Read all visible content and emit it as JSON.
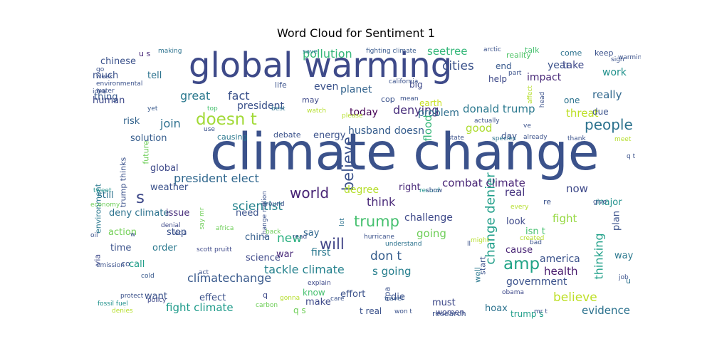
{
  "chart_data": {
    "type": "wordcloud",
    "title": "Word Cloud for Sentiment 1",
    "colormap": "viridis",
    "background": "#ffffff",
    "words": [
      {
        "text": "climate change",
        "weight": 1.0,
        "color": "#3b528b"
      },
      {
        "text": "global warming",
        "weight": 0.68,
        "color": "#3e4a89"
      },
      {
        "text": "doesn t",
        "weight": 0.33,
        "color": "#a2da37"
      },
      {
        "text": "amp",
        "weight": 0.33,
        "color": "#20a386"
      },
      {
        "text": "s",
        "weight": 0.33,
        "color": "#3e4989"
      },
      {
        "text": "believe",
        "weight": 0.3,
        "color": "#3b528b",
        "vertical": true
      },
      {
        "text": "trump",
        "weight": 0.3,
        "color": "#46c06f"
      },
      {
        "text": "will",
        "weight": 0.3,
        "color": "#414487"
      },
      {
        "text": "world",
        "weight": 0.28,
        "color": "#482475"
      },
      {
        "text": "people",
        "weight": 0.28,
        "color": "#2c728e"
      },
      {
        "text": "change denier",
        "weight": 0.26,
        "color": "#1f9e89",
        "vertical": true
      },
      {
        "text": "believe",
        "weight": 0.24,
        "color": "#bddf26"
      },
      {
        "text": "scientist",
        "weight": 0.24,
        "color": "#25838e"
      },
      {
        "text": "new",
        "weight": 0.24,
        "color": "#29af7f"
      },
      {
        "text": "don t",
        "weight": 0.24,
        "color": "#365d8d"
      },
      {
        "text": "cities",
        "weight": 0.24,
        "color": "#3b528b"
      },
      {
        "text": "president elect",
        "weight": 0.23,
        "color": "#31688e"
      },
      {
        "text": "think",
        "weight": 0.23,
        "color": "#482878"
      },
      {
        "text": "denying",
        "weight": 0.23,
        "color": "#472d7b"
      },
      {
        "text": "climatechange",
        "weight": 0.23,
        "color": "#38598c"
      },
      {
        "text": "thinking",
        "weight": 0.22,
        "color": "#1fa088",
        "vertical": true
      },
      {
        "text": "pollution",
        "weight": 0.22,
        "color": "#35b779"
      },
      {
        "text": "great",
        "weight": 0.22,
        "color": "#2a788e"
      },
      {
        "text": "fact",
        "weight": 0.22,
        "color": "#3b528b"
      },
      {
        "text": "join",
        "weight": 0.22,
        "color": "#2d708e"
      },
      {
        "text": "tackle climate",
        "weight": 0.22,
        "color": "#26828e"
      },
      {
        "text": "donald trump",
        "weight": 0.21,
        "color": "#2a788e"
      },
      {
        "text": "combat climate",
        "weight": 0.21,
        "color": "#482475"
      },
      {
        "text": "real",
        "weight": 0.21,
        "color": "#463480"
      },
      {
        "text": "now",
        "weight": 0.21,
        "color": "#3e4989"
      },
      {
        "text": "flood",
        "weight": 0.21,
        "color": "#35b779",
        "vertical": true
      },
      {
        "text": "health",
        "weight": 0.21,
        "color": "#481a6c"
      },
      {
        "text": "evidence",
        "weight": 0.21,
        "color": "#2c728e"
      },
      {
        "text": "fight climate",
        "weight": 0.21,
        "color": "#1e9b8a"
      },
      {
        "text": "good",
        "weight": 0.21,
        "color": "#addc30"
      },
      {
        "text": "threat",
        "weight": 0.21,
        "color": "#bddf26"
      },
      {
        "text": "seetree",
        "weight": 0.21,
        "color": "#35b779"
      },
      {
        "text": "really",
        "weight": 0.21,
        "color": "#31688e"
      },
      {
        "text": "fight",
        "weight": 0.21,
        "color": "#95d840"
      },
      {
        "text": "going",
        "weight": 0.21,
        "color": "#6ece58"
      },
      {
        "text": "s going",
        "weight": 0.21,
        "color": "#277f8e"
      },
      {
        "text": "america",
        "weight": 0.2,
        "color": "#3b528b"
      },
      {
        "text": "government",
        "weight": 0.2,
        "color": "#3b528b"
      },
      {
        "text": "degree",
        "weight": 0.2,
        "color": "#b5de2b"
      },
      {
        "text": "challenge",
        "weight": 0.2,
        "color": "#3e4989"
      },
      {
        "text": "planet",
        "weight": 0.2,
        "color": "#33638d"
      },
      {
        "text": "today",
        "weight": 0.2,
        "color": "#440154"
      },
      {
        "text": "problem",
        "weight": 0.2,
        "color": "#2e6e8e"
      },
      {
        "text": "even",
        "weight": 0.2,
        "color": "#3b528b"
      },
      {
        "text": "impact",
        "weight": 0.2,
        "color": "#482878"
      },
      {
        "text": "year",
        "weight": 0.2,
        "color": "#3b528b"
      },
      {
        "text": "take",
        "weight": 0.2,
        "color": "#3e4989"
      },
      {
        "text": "work",
        "weight": 0.2,
        "color": "#21918c"
      },
      {
        "text": "president",
        "weight": 0.2,
        "color": "#3b528b"
      },
      {
        "text": "husband doesn",
        "weight": 0.2,
        "color": "#365d8d"
      },
      {
        "text": "first",
        "weight": 0.2,
        "color": "#2a788e"
      },
      {
        "text": "plan",
        "weight": 0.19,
        "color": "#3b528b",
        "vertical": true
      },
      {
        "text": "major",
        "weight": 0.19,
        "color": "#21918c"
      },
      {
        "text": "cause",
        "weight": 0.19,
        "color": "#482475"
      },
      {
        "text": "way",
        "weight": 0.19,
        "color": "#2a788e"
      },
      {
        "text": "isn t",
        "weight": 0.19,
        "color": "#46c06f"
      },
      {
        "text": "look",
        "weight": 0.19,
        "color": "#3e4989"
      },
      {
        "text": "effect",
        "weight": 0.19,
        "color": "#3b528b"
      },
      {
        "text": "solution",
        "weight": 0.19,
        "color": "#365d8d"
      },
      {
        "text": "risk",
        "weight": 0.19,
        "color": "#33638d"
      },
      {
        "text": "thing",
        "weight": 0.19,
        "color": "#38598c"
      },
      {
        "text": "global",
        "weight": 0.18,
        "color": "#3e4989"
      },
      {
        "text": "weather",
        "weight": 0.18,
        "color": "#3b528b"
      },
      {
        "text": "deny climate",
        "weight": 0.18,
        "color": "#2c728e"
      },
      {
        "text": "issue",
        "weight": 0.18,
        "color": "#472d7b"
      },
      {
        "text": "need",
        "weight": 0.18,
        "color": "#3b528b"
      },
      {
        "text": "say",
        "weight": 0.18,
        "color": "#31688e"
      },
      {
        "text": "china",
        "weight": 0.18,
        "color": "#355f8d"
      },
      {
        "text": "science",
        "weight": 0.18,
        "color": "#3e4989"
      },
      {
        "text": "war",
        "weight": 0.18,
        "color": "#482878"
      },
      {
        "text": "energy",
        "weight": 0.18,
        "color": "#3b528b"
      },
      {
        "text": "chinese",
        "weight": 0.18,
        "color": "#3b528b"
      },
      {
        "text": "much",
        "weight": 0.18,
        "color": "#3b528b"
      },
      {
        "text": "tell",
        "weight": 0.18,
        "color": "#2c728e"
      },
      {
        "text": "human",
        "weight": 0.18,
        "color": "#3e4989"
      },
      {
        "text": "right",
        "weight": 0.18,
        "color": "#482878"
      },
      {
        "text": "still",
        "weight": 0.18,
        "color": "#2d708e"
      },
      {
        "text": "action",
        "weight": 0.18,
        "color": "#73d056"
      },
      {
        "text": "stop",
        "weight": 0.18,
        "color": "#3b528b"
      },
      {
        "text": "time",
        "weight": 0.18,
        "color": "#3b528b"
      },
      {
        "text": "order",
        "weight": 0.18,
        "color": "#2a788e"
      },
      {
        "text": "call",
        "weight": 0.18,
        "color": "#1f9e89"
      },
      {
        "text": "want",
        "weight": 0.18,
        "color": "#3b528b"
      },
      {
        "text": "make",
        "weight": 0.18,
        "color": "#3e4989"
      },
      {
        "text": "effort",
        "weight": 0.18,
        "color": "#3b528b"
      },
      {
        "text": "die",
        "weight": 0.18,
        "color": "#3b528b"
      },
      {
        "text": "must",
        "weight": 0.18,
        "color": "#3e4989"
      },
      {
        "text": "hoax",
        "weight": 0.18,
        "color": "#2c728e"
      },
      {
        "text": "know",
        "weight": 0.17,
        "color": "#46c06f"
      },
      {
        "text": "q s",
        "weight": 0.17,
        "color": "#6ece58"
      },
      {
        "text": "t real",
        "weight": 0.17,
        "color": "#3b528b"
      },
      {
        "text": "research",
        "weight": 0.16,
        "color": "#3b528b"
      },
      {
        "text": "women",
        "weight": 0.16,
        "color": "#3e4989"
      },
      {
        "text": "trump s",
        "weight": 0.17,
        "color": "#1f9e89"
      },
      {
        "text": "big",
        "weight": 0.17,
        "color": "#3e4989"
      },
      {
        "text": "earth",
        "weight": 0.17,
        "color": "#c8e020"
      },
      {
        "text": "day",
        "weight": 0.17,
        "color": "#3b528b"
      },
      {
        "text": "end",
        "weight": 0.17,
        "color": "#38598c"
      },
      {
        "text": "help",
        "weight": 0.17,
        "color": "#3e4989"
      },
      {
        "text": "one",
        "weight": 0.17,
        "color": "#2c728e"
      },
      {
        "text": "due",
        "weight": 0.17,
        "color": "#3b528b"
      },
      {
        "text": "come",
        "weight": 0.16,
        "color": "#2c728e"
      },
      {
        "text": "keep",
        "weight": 0.16,
        "color": "#3b528b"
      },
      {
        "text": "reality",
        "weight": 0.16,
        "color": "#52c569"
      },
      {
        "text": "u s",
        "weight": 0.16,
        "color": "#482878"
      },
      {
        "text": "talk",
        "weight": 0.16,
        "color": "#46c06f"
      },
      {
        "text": "cop",
        "weight": 0.16,
        "color": "#3b528b"
      },
      {
        "text": "may",
        "weight": 0.16,
        "color": "#3e4989"
      },
      {
        "text": "life",
        "weight": 0.16,
        "color": "#3b528b"
      },
      {
        "text": "debate",
        "weight": 0.16,
        "color": "#3b528b"
      },
      {
        "text": "causing",
        "weight": 0.16,
        "color": "#2a788e"
      },
      {
        "text": "future",
        "weight": 0.16,
        "color": "#6ece58",
        "vertical": true
      },
      {
        "text": "trump thinks",
        "weight": 0.15,
        "color": "#3b528b",
        "vertical": true
      },
      {
        "text": "environment",
        "weight": 0.15,
        "color": "#2a788e",
        "vertical": true
      },
      {
        "text": "via",
        "weight": 0.15,
        "color": "#3e4989",
        "vertical": true
      },
      {
        "text": "co",
        "weight": 0.15,
        "color": "#3b528b"
      },
      {
        "text": "q",
        "weight": 0.15,
        "color": "#3e4989"
      },
      {
        "text": "epa",
        "weight": 0.15,
        "color": "#3b528b",
        "vertical": true
      },
      {
        "text": "well",
        "weight": 0.15,
        "color": "#2a788e",
        "vertical": true
      },
      {
        "text": "start",
        "weight": 0.15,
        "color": "#3b528b",
        "vertical": true
      },
      {
        "text": "re",
        "weight": 0.15,
        "color": "#3b528b"
      },
      {
        "text": "u",
        "weight": 0.15,
        "color": "#2c728e"
      },
      {
        "text": "job",
        "weight": 0.13,
        "color": "#3b528b"
      },
      {
        "text": "policy",
        "weight": 0.13,
        "color": "#3e4989"
      },
      {
        "text": "protect",
        "weight": 0.13,
        "color": "#3b528b"
      },
      {
        "text": "fossil fuel",
        "weight": 0.13,
        "color": "#21918c"
      },
      {
        "text": "yet",
        "weight": 0.13,
        "color": "#38598c"
      },
      {
        "text": "top",
        "weight": 0.13,
        "color": "#46c06f"
      },
      {
        "text": "best",
        "weight": 0.12,
        "color": "#2c728e"
      },
      {
        "text": "save",
        "weight": 0.12,
        "color": "#2a788e"
      },
      {
        "text": "making",
        "weight": 0.12,
        "color": "#2c728e"
      },
      {
        "text": "fighting climate",
        "weight": 0.12,
        "color": "#38598c"
      },
      {
        "text": "denial",
        "weight": 0.12,
        "color": "#3e4989"
      },
      {
        "text": "let s",
        "weight": 0.12,
        "color": "#3b528b"
      },
      {
        "text": "every",
        "weight": 0.12,
        "color": "#b5de2b"
      },
      {
        "text": "understand",
        "weight": 0.12,
        "color": "#2c728e"
      },
      {
        "text": "hurricane",
        "weight": 0.12,
        "color": "#3b528b"
      },
      {
        "text": "back",
        "weight": 0.12,
        "color": "#6ece58"
      },
      {
        "text": "africa",
        "weight": 0.12,
        "color": "#6ece58"
      },
      {
        "text": "scott pruitt",
        "weight": 0.1,
        "color": "#3e4989"
      },
      {
        "text": "cold",
        "weight": 0.1,
        "color": "#38598c"
      },
      {
        "text": "actually",
        "weight": 0.1,
        "color": "#3b528b"
      },
      {
        "text": "already",
        "weight": 0.12,
        "color": "#3b528b"
      },
      {
        "text": "thank",
        "weight": 0.12,
        "color": "#3b528b"
      },
      {
        "text": "bad",
        "weight": 0.11,
        "color": "#3b528b"
      },
      {
        "text": "state",
        "weight": 0.12,
        "color": "#3b528b"
      },
      {
        "text": "species",
        "weight": 0.11,
        "color": "#2c728e"
      },
      {
        "text": "obama",
        "weight": 0.11,
        "color": "#3e4989"
      },
      {
        "text": "mr t",
        "weight": 0.1,
        "color": "#3b528b"
      },
      {
        "text": "won t",
        "weight": 0.1,
        "color": "#3b528b"
      },
      {
        "text": "travel",
        "weight": 0.1,
        "color": "#38598c"
      },
      {
        "text": "care",
        "weight": 0.09,
        "color": "#3b528b"
      },
      {
        "text": "explain",
        "weight": 0.09,
        "color": "#3e4989"
      },
      {
        "text": "gonna",
        "weight": 0.08,
        "color": "#b5de2b"
      },
      {
        "text": "carbon",
        "weight": 0.09,
        "color": "#6ece58"
      },
      {
        "text": "denies",
        "weight": 0.08,
        "color": "#b5de2b"
      },
      {
        "text": "act",
        "weight": 0.08,
        "color": "#3b528b"
      },
      {
        "text": "emission",
        "weight": 0.08,
        "color": "#3b528b"
      },
      {
        "text": "oil",
        "weight": 0.09,
        "color": "#3b528b"
      },
      {
        "text": "w",
        "weight": 0.09,
        "color": "#3b528b"
      },
      {
        "text": "economy",
        "weight": 0.07,
        "color": "#6ece58"
      },
      {
        "text": "tweet",
        "weight": 0.08,
        "color": "#21918c"
      },
      {
        "text": "say mr",
        "weight": 0.07,
        "color": "#6ece58",
        "vertical": true
      },
      {
        "text": "change million",
        "weight": 0.08,
        "color": "#3b528b",
        "vertical": true
      },
      {
        "text": "lot",
        "weight": 0.07,
        "color": "#2c728e",
        "vertical": true
      },
      {
        "text": "around",
        "weight": 0.08,
        "color": "#3b528b"
      },
      {
        "text": "read",
        "weight": 0.08,
        "color": "#3b528b"
      },
      {
        "text": "record",
        "weight": 0.08,
        "color": "#21918c"
      },
      {
        "text": "show",
        "weight": 0.08,
        "color": "#3b528b"
      },
      {
        "text": "give",
        "weight": 0.08,
        "color": "#3b528b"
      },
      {
        "text": "q t",
        "weight": 0.08,
        "color": "#3b528b"
      },
      {
        "text": "created",
        "weight": 0.08,
        "color": "#b5de2b"
      },
      {
        "text": "might",
        "weight": 0.08,
        "color": "#b5de2b"
      },
      {
        "text": "ll",
        "weight": 0.08,
        "color": "#3b528b"
      },
      {
        "text": "meet",
        "weight": 0.08,
        "color": "#b5de2b"
      },
      {
        "text": "ve",
        "weight": 0.09,
        "color": "#3b528b"
      },
      {
        "text": "head",
        "weight": 0.09,
        "color": "#3b528b",
        "vertical": true
      },
      {
        "text": "affect",
        "weight": 0.08,
        "color": "#b5de2b",
        "vertical": true
      },
      {
        "text": "part",
        "weight": 0.08,
        "color": "#3b528b"
      },
      {
        "text": "arctic",
        "weight": 0.08,
        "color": "#3b528b"
      },
      {
        "text": "sign",
        "weight": 0.1,
        "color": "#3b528b"
      },
      {
        "text": "warming isn",
        "weight": 0.09,
        "color": "#3b528b"
      },
      {
        "text": "california",
        "weight": 0.08,
        "color": "#3b528b"
      },
      {
        "text": "mean",
        "weight": 0.08,
        "color": "#3b528b"
      },
      {
        "text": "please",
        "weight": 0.08,
        "color": "#b5de2b"
      },
      {
        "text": "watch",
        "weight": 0.07,
        "color": "#b5de2b"
      },
      {
        "text": "use",
        "weight": 0.08,
        "color": "#3b528b"
      },
      {
        "text": "idea",
        "weight": 0.08,
        "color": "#3b528b"
      },
      {
        "text": "go",
        "weight": 0.09,
        "color": "#3b528b"
      },
      {
        "text": "week",
        "weight": 0.07,
        "color": "#3b528b"
      },
      {
        "text": "environmental",
        "weight": 0.07,
        "color": "#3b528b"
      },
      {
        "text": "water",
        "weight": 0.09,
        "color": "#3b528b"
      }
    ]
  }
}
